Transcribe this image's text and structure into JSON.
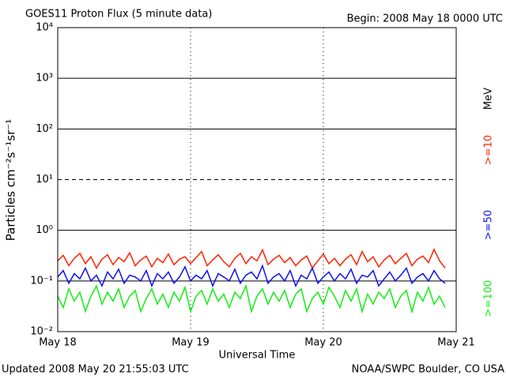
{
  "chart_data": {
    "type": "line",
    "title": "GOES11 Proton Flux (5 minute data)",
    "subtitle": "Begin: 2008 May 18 0000 UTC",
    "footer_left": "Updated 2008 May 20 21:55:03 UTC",
    "footer_right": "NOAA/SWPC Boulder, CO USA",
    "x_label": "Universal Time",
    "y_label": "Particles cm⁻²s⁻¹sr⁻¹",
    "legend_unit": "MeV",
    "log_y": true,
    "grid": true,
    "xlim": [
      0,
      72
    ],
    "xticks": [
      {
        "value": 0,
        "label": "May 18"
      },
      {
        "value": 24,
        "label": "May 19"
      },
      {
        "value": 48,
        "label": "May 20"
      },
      {
        "value": 72,
        "label": "May 21"
      }
    ],
    "ylim": [
      0.01,
      10000
    ],
    "yticks": [
      {
        "value": 0.01,
        "label": "10⁻²"
      },
      {
        "value": 0.1,
        "label": "10⁻¹"
      },
      {
        "value": 1,
        "label": "10⁰"
      },
      {
        "value": 10,
        "label": "10¹"
      },
      {
        "value": 100,
        "label": "10²"
      },
      {
        "value": 1000,
        "label": "10³"
      },
      {
        "value": 10000,
        "label": "10⁴"
      }
    ],
    "x": [
      0,
      1,
      2,
      3,
      4,
      5,
      6,
      7,
      8,
      9,
      10,
      11,
      12,
      13,
      14,
      15,
      16,
      17,
      18,
      19,
      20,
      21,
      22,
      23,
      24,
      25,
      26,
      27,
      28,
      29,
      30,
      31,
      32,
      33,
      34,
      35,
      36,
      37,
      38,
      39,
      40,
      41,
      42,
      43,
      44,
      45,
      46,
      47,
      48,
      49,
      50,
      51,
      52,
      53,
      54,
      55,
      56,
      57,
      58,
      59,
      60,
      61,
      62,
      63,
      64,
      65,
      66,
      67,
      68,
      69,
      70
    ],
    "series": [
      {
        "name": ">=10",
        "color": "#ff2000",
        "values": [
          0.25,
          0.32,
          0.2,
          0.28,
          0.35,
          0.22,
          0.3,
          0.18,
          0.27,
          0.33,
          0.21,
          0.29,
          0.24,
          0.36,
          0.2,
          0.26,
          0.31,
          0.19,
          0.28,
          0.23,
          0.34,
          0.21,
          0.27,
          0.3,
          0.22,
          0.29,
          0.38,
          0.2,
          0.26,
          0.33,
          0.24,
          0.19,
          0.28,
          0.35,
          0.22,
          0.3,
          0.25,
          0.41,
          0.21,
          0.27,
          0.32,
          0.23,
          0.29,
          0.2,
          0.26,
          0.31,
          0.18,
          0.25,
          0.34,
          0.22,
          0.28,
          0.2,
          0.27,
          0.33,
          0.21,
          0.38,
          0.24,
          0.3,
          0.19,
          0.26,
          0.32,
          0.22,
          0.28,
          0.35,
          0.2,
          0.27,
          0.31,
          0.23,
          0.42,
          0.25,
          0.18
        ]
      },
      {
        "name": ">=50",
        "color": "#1010ee",
        "values": [
          0.12,
          0.16,
          0.09,
          0.14,
          0.11,
          0.18,
          0.1,
          0.13,
          0.08,
          0.15,
          0.11,
          0.17,
          0.09,
          0.13,
          0.12,
          0.1,
          0.16,
          0.08,
          0.14,
          0.11,
          0.15,
          0.09,
          0.12,
          0.19,
          0.1,
          0.13,
          0.11,
          0.16,
          0.08,
          0.14,
          0.12,
          0.1,
          0.17,
          0.09,
          0.13,
          0.15,
          0.11,
          0.2,
          0.09,
          0.12,
          0.14,
          0.1,
          0.16,
          0.08,
          0.13,
          0.11,
          0.18,
          0.09,
          0.12,
          0.15,
          0.1,
          0.14,
          0.11,
          0.17,
          0.09,
          0.13,
          0.12,
          0.16,
          0.08,
          0.11,
          0.15,
          0.1,
          0.13,
          0.18,
          0.09,
          0.12,
          0.14,
          0.1,
          0.16,
          0.11,
          0.09
        ]
      },
      {
        "name": ">=100",
        "color": "#10ee10",
        "values": [
          0.05,
          0.03,
          0.07,
          0.04,
          0.06,
          0.025,
          0.05,
          0.08,
          0.035,
          0.06,
          0.04,
          0.07,
          0.03,
          0.05,
          0.065,
          0.025,
          0.045,
          0.07,
          0.035,
          0.055,
          0.03,
          0.06,
          0.04,
          0.075,
          0.025,
          0.05,
          0.065,
          0.035,
          0.07,
          0.04,
          0.055,
          0.03,
          0.06,
          0.045,
          0.08,
          0.025,
          0.05,
          0.07,
          0.035,
          0.06,
          0.04,
          0.065,
          0.03,
          0.055,
          0.07,
          0.025,
          0.045,
          0.06,
          0.035,
          0.075,
          0.05,
          0.03,
          0.065,
          0.04,
          0.07,
          0.025,
          0.055,
          0.035,
          0.06,
          0.045,
          0.07,
          0.03,
          0.05,
          0.065,
          0.025,
          0.06,
          0.04,
          0.075,
          0.035,
          0.05,
          0.03
        ]
      }
    ]
  }
}
